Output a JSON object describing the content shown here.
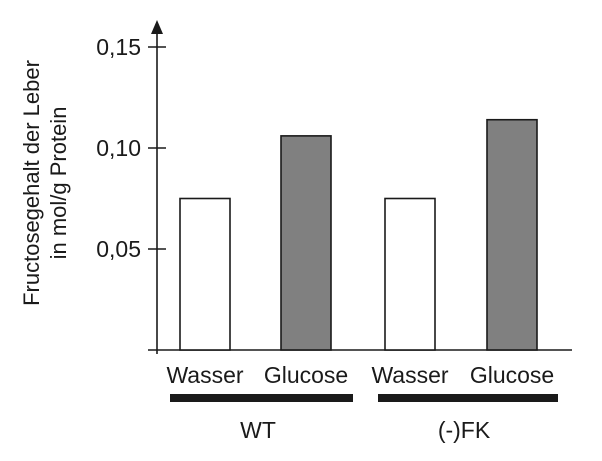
{
  "chart_data": {
    "type": "bar",
    "ylabel": [
      "Fructosegehalt der Leber",
      "in mol/g Protein"
    ],
    "ylim": [
      0,
      0.155
    ],
    "yticks": [
      0.05,
      0.1,
      0.15
    ],
    "ytick_labels": [
      "0,05",
      "0,10",
      "0,15"
    ],
    "categories": [
      "Wasser",
      "Glucose",
      "Wasser",
      "Glucose"
    ],
    "values": [
      0.075,
      0.106,
      0.075,
      0.114
    ],
    "bar_colors": [
      "#ffffff",
      "#808080",
      "#ffffff",
      "#808080"
    ],
    "groups": [
      {
        "label": "WT",
        "categories": [
          0,
          1
        ]
      },
      {
        "label": "(-)FK",
        "categories": [
          2,
          3
        ]
      }
    ],
    "grid": false,
    "legend": "none"
  }
}
